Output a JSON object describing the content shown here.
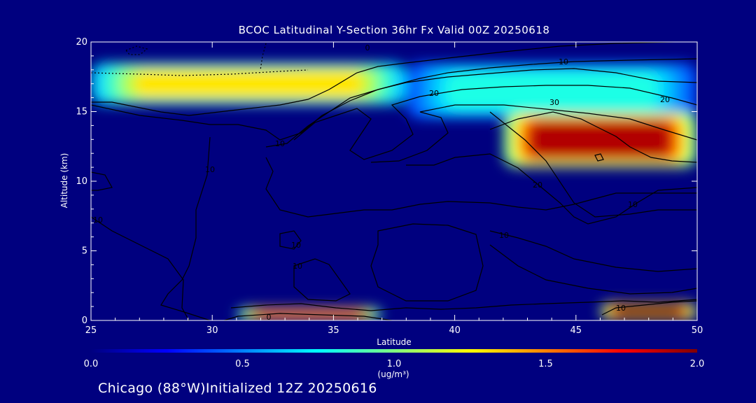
{
  "chart_data": {
    "type": "heatmap",
    "title": "BCOC Latitudinal Y-Section 36hr  Fx Valid 00Z 20250618",
    "xlabel": "Latitude",
    "ylabel": "Altitude (km)",
    "xlim": [
      25,
      50
    ],
    "ylim": [
      0,
      20
    ],
    "xticks": [
      "25",
      "30",
      "35",
      "40",
      "45",
      "50"
    ],
    "yticks": [
      "0",
      "5",
      "10",
      "15",
      "20"
    ],
    "x_tick_values": [
      25,
      30,
      35,
      40,
      45,
      50
    ],
    "y_tick_values": [
      0,
      5,
      10,
      15,
      20
    ],
    "colorbar": {
      "min": 0.0,
      "max": 2.0,
      "unit": "(ug/m³)",
      "ticks": [
        "0.0",
        "0.5",
        "1.0",
        "1.5",
        "2.0"
      ],
      "tick_values": [
        0.0,
        0.5,
        1.0,
        1.5,
        2.0
      ],
      "colors": [
        "#00007f",
        "#0000ff",
        "#0080ff",
        "#00ffff",
        "#80ff80",
        "#ffff00",
        "#ff8000",
        "#ff0000",
        "#7f0000"
      ]
    },
    "concentration_features": [
      {
        "lat_range": [
          25,
          38
        ],
        "alt_range": [
          15.5,
          18.5
        ],
        "peak_value": 1.3
      },
      {
        "lat_range": [
          38,
          50
        ],
        "alt_range": [
          14.5,
          18.5
        ],
        "peak_value": 0.8
      },
      {
        "lat_range": [
          42,
          50
        ],
        "alt_range": [
          11,
          15
        ],
        "peak_value": 1.9
      },
      {
        "lat_range": [
          31,
          37
        ],
        "alt_range": [
          0,
          0.9
        ],
        "peak_value": 1.7
      },
      {
        "lat_range": [
          46,
          50
        ],
        "alt_range": [
          0,
          1.3
        ],
        "peak_value": 2.0
      }
    ],
    "contour_labels": [
      "0",
      "10",
      "10",
      "20",
      "20",
      "30",
      "20",
      "10",
      "10",
      "10",
      "10",
      "10",
      "10",
      "10",
      "0"
    ]
  },
  "footer": "Chicago (88°W)Initialized 12Z 20250616"
}
